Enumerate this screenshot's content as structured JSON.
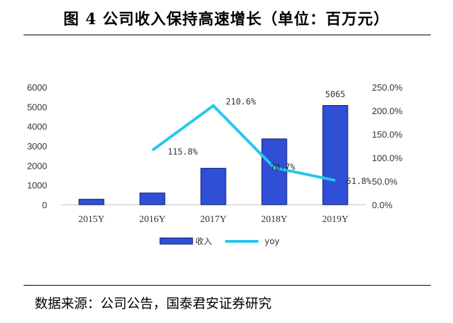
{
  "title": "图  4 公司收入保持高速增长（单位：百万元）",
  "source": "数据来源：公司公告，国泰君安证券研究",
  "colors": {
    "bar": "#2f4fd6",
    "bar_stroke": "#0b1a6b",
    "line": "#27c6ec",
    "axis": "#bfbfbf"
  },
  "chart_data": {
    "type": "bar+line",
    "categories": [
      "2015Y",
      "2016Y",
      "2017Y",
      "2018Y",
      "2019Y"
    ],
    "series": [
      {
        "name": "收入",
        "type": "bar",
        "axis": "left",
        "values": [
          280,
          600,
          1860,
          3360,
          5065
        ],
        "labels": [
          "",
          "",
          "",
          "",
          "5065"
        ]
      },
      {
        "name": "yoy",
        "type": "line",
        "axis": "right",
        "unit": "%",
        "values": [
          null,
          115.8,
          210.6,
          78.7,
          51.8
        ],
        "labels": [
          "",
          "115.8%",
          "210.6%",
          "78.7%",
          "51.8%"
        ]
      }
    ],
    "left_axis": {
      "min": 0,
      "max": 6000,
      "ticks": [
        "0",
        "1000",
        "2000",
        "3000",
        "4000",
        "5000",
        "6000"
      ]
    },
    "right_axis": {
      "min": 0,
      "max": 250,
      "ticks": [
        "0.0%",
        "50.0%",
        "100.0%",
        "150.0%",
        "200.0%",
        "250.0%"
      ]
    },
    "legend": [
      "收入",
      "yoy"
    ],
    "legend_position": "bottom"
  }
}
